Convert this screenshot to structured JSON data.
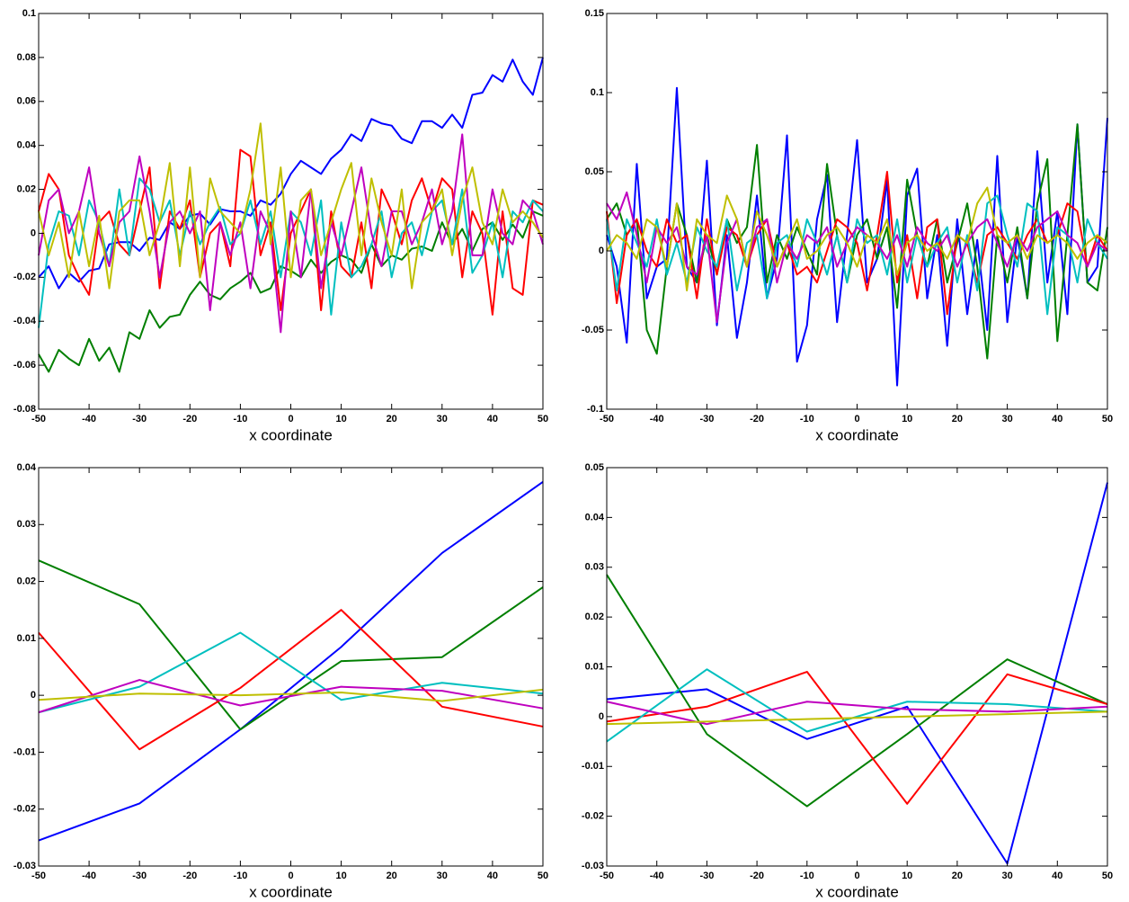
{
  "chart_data": [
    {
      "type": "line",
      "xlabel": "x coordinate",
      "x": [
        -50,
        -48,
        -46,
        -44,
        -42,
        -40,
        -38,
        -36,
        -34,
        -32,
        -30,
        -28,
        -26,
        -24,
        -22,
        -20,
        -18,
        -16,
        -14,
        -12,
        -10,
        -8,
        -6,
        -4,
        -2,
        0,
        2,
        4,
        6,
        8,
        10,
        12,
        14,
        16,
        18,
        20,
        22,
        24,
        26,
        28,
        30,
        32,
        34,
        36,
        38,
        40,
        42,
        44,
        46,
        48,
        50
      ],
      "xlim": [
        -50,
        50
      ],
      "ylim": [
        -0.08,
        0.1
      ],
      "xticks": [
        -50,
        -40,
        -30,
        -20,
        -10,
        0,
        10,
        20,
        30,
        40,
        50
      ],
      "yticks": [
        -0.08,
        -0.06,
        -0.04,
        -0.02,
        0,
        0.02,
        0.04,
        0.06,
        0.08,
        0.1
      ],
      "series": [
        {
          "color": "#0000ff",
          "values": [
            -0.02,
            -0.015,
            -0.025,
            -0.018,
            -0.022,
            -0.017,
            -0.016,
            -0.005,
            -0.004,
            -0.004,
            -0.008,
            -0.002,
            -0.003,
            0.005,
            0.002,
            0.008,
            0.009,
            0.004,
            0.011,
            0.01,
            0.01,
            0.008,
            0.015,
            0.013,
            0.018,
            0.027,
            0.033,
            0.03,
            0.027,
            0.034,
            0.038,
            0.045,
            0.042,
            0.052,
            0.05,
            0.049,
            0.043,
            0.041,
            0.051,
            0.051,
            0.048,
            0.054,
            0.048,
            0.063,
            0.064,
            0.072,
            0.069,
            0.079,
            0.069,
            0.063,
            0.08
          ]
        },
        {
          "color": "#007f00",
          "values": [
            -0.055,
            -0.063,
            -0.053,
            -0.057,
            -0.06,
            -0.048,
            -0.058,
            -0.052,
            -0.063,
            -0.045,
            -0.048,
            -0.035,
            -0.043,
            -0.038,
            -0.037,
            -0.028,
            -0.022,
            -0.028,
            -0.03,
            -0.025,
            -0.022,
            -0.018,
            -0.027,
            -0.025,
            -0.015,
            -0.017,
            -0.02,
            -0.012,
            -0.018,
            -0.013,
            -0.01,
            -0.012,
            -0.018,
            -0.005,
            -0.015,
            -0.01,
            -0.012,
            -0.007,
            -0.006,
            -0.008,
            0.005,
            -0.005,
            0.002,
            -0.008,
            0.002,
            0.005,
            -0.003,
            0.004,
            -0.002,
            0.01,
            0.008
          ]
        },
        {
          "color": "#ff0000",
          "values": [
            0.01,
            0.027,
            0.02,
            -0.01,
            -0.02,
            -0.028,
            0.005,
            0.01,
            -0.005,
            -0.01,
            0.01,
            0.03,
            -0.025,
            0.01,
            0.002,
            0.015,
            -0.02,
            0,
            0.005,
            -0.015,
            0.038,
            0.035,
            -0.01,
            0.005,
            -0.035,
            0,
            0.01,
            0.02,
            -0.035,
            0.01,
            -0.015,
            -0.02,
            0.005,
            -0.025,
            0.02,
            0.01,
            -0.005,
            0.015,
            0.025,
            0.01,
            0.025,
            0.02,
            -0.02,
            0.01,
            0,
            -0.037,
            0.01,
            -0.025,
            -0.028,
            0.015,
            0.013
          ]
        },
        {
          "color": "#00bfbf",
          "values": [
            -0.043,
            -0.005,
            0.01,
            0.008,
            -0.01,
            0.015,
            0.005,
            -0.015,
            0.02,
            -0.01,
            0.025,
            0.02,
            0.005,
            0.015,
            -0.01,
            0.01,
            -0.005,
            0.005,
            0.012,
            -0.005,
            0,
            0.015,
            -0.005,
            0.01,
            -0.02,
            0.01,
            0.005,
            -0.01,
            0.015,
            -0.037,
            0.005,
            -0.02,
            -0.015,
            -0.005,
            0.01,
            -0.02,
            0,
            0.005,
            -0.01,
            0.01,
            0.015,
            -0.005,
            0.02,
            -0.018,
            -0.01,
            0.005,
            -0.02,
            0.01,
            0.005,
            0.015,
            0.01
          ]
        },
        {
          "color": "#bf00bf",
          "values": [
            -0.01,
            0.015,
            0.02,
            0,
            0.01,
            0.03,
            0,
            -0.015,
            0.005,
            0.01,
            0.035,
            0.01,
            -0.02,
            0.005,
            0.01,
            0,
            0.01,
            -0.035,
            0.005,
            -0.01,
            0.005,
            -0.025,
            0.01,
            0,
            -0.045,
            0.01,
            -0.02,
            0.02,
            -0.025,
            0.005,
            -0.01,
            0.01,
            0.03,
            0,
            -0.015,
            0.01,
            0.01,
            -0.005,
            0.005,
            0.02,
            -0.005,
            0.01,
            0.045,
            -0.01,
            -0.01,
            0.02,
            0,
            -0.005,
            0.015,
            0.01,
            -0.005
          ]
        },
        {
          "color": "#bfbf00",
          "values": [
            0.01,
            -0.01,
            0.005,
            -0.02,
            0.01,
            -0.015,
            0.008,
            -0.025,
            0.01,
            0.015,
            0.015,
            -0.01,
            0.005,
            0.032,
            -0.015,
            0.03,
            -0.02,
            0.025,
            0.01,
            0.005,
            0,
            0.02,
            0.05,
            -0.005,
            0.03,
            -0.02,
            0.015,
            0.02,
            -0.01,
            0.005,
            0.02,
            0.032,
            -0.01,
            0.025,
            0.005,
            -0.01,
            0.02,
            -0.025,
            0.005,
            0.01,
            0.02,
            -0.01,
            0.015,
            0.03,
            0.005,
            -0.005,
            0.02,
            0.005,
            0.01,
            0.005,
            -0.002
          ]
        }
      ]
    },
    {
      "type": "line",
      "xlabel": "x coordinate",
      "x": [
        -50,
        -48,
        -46,
        -44,
        -42,
        -40,
        -38,
        -36,
        -34,
        -32,
        -30,
        -28,
        -26,
        -24,
        -22,
        -20,
        -18,
        -16,
        -14,
        -12,
        -10,
        -8,
        -6,
        -4,
        -2,
        0,
        2,
        4,
        6,
        8,
        10,
        12,
        14,
        16,
        18,
        20,
        22,
        24,
        26,
        28,
        30,
        32,
        34,
        36,
        38,
        40,
        42,
        44,
        46,
        48,
        50
      ],
      "xlim": [
        -50,
        50
      ],
      "ylim": [
        -0.1,
        0.15
      ],
      "xticks": [
        -50,
        -40,
        -30,
        -20,
        -10,
        0,
        10,
        20,
        30,
        40,
        50
      ],
      "yticks": [
        -0.1,
        -0.05,
        0,
        0.05,
        0.1,
        0.15
      ],
      "series": [
        {
          "color": "#0000ff",
          "values": [
            0.01,
            -0.01,
            -0.058,
            0.055,
            -0.03,
            -0.01,
            -0.005,
            0.103,
            -0.01,
            -0.02,
            0.057,
            -0.047,
            0.01,
            -0.055,
            -0.02,
            0.035,
            -0.03,
            -0.005,
            0.073,
            -0.07,
            -0.047,
            0.02,
            0.048,
            -0.045,
            0.01,
            0.07,
            -0.02,
            -0.005,
            0.045,
            -0.085,
            0.035,
            0.052,
            -0.03,
            0.01,
            -0.06,
            0.02,
            -0.04,
            0.007,
            -0.05,
            0.06,
            -0.045,
            0.01,
            -0.03,
            0.063,
            -0.02,
            0.025,
            -0.04,
            0.08,
            -0.02,
            -0.01,
            0.084
          ]
        },
        {
          "color": "#007f00",
          "values": [
            0.02,
            0.03,
            0.01,
            0.02,
            -0.05,
            -0.065,
            -0.01,
            0.03,
            0.01,
            -0.02,
            0.01,
            -0.015,
            0.02,
            0.005,
            0.015,
            0.067,
            -0.02,
            0.01,
            -0.005,
            0.015,
            0,
            -0.015,
            0.055,
            0.01,
            -0.02,
            0.01,
            0.02,
            -0.005,
            0.015,
            -0.036,
            0.045,
            0.01,
            -0.01,
            0.02,
            -0.02,
            0.005,
            0.03,
            -0.01,
            -0.068,
            0.01,
            -0.02,
            0.015,
            -0.03,
            0.03,
            0.058,
            -0.057,
            0.01,
            0.08,
            -0.02,
            -0.025,
            0.015
          ]
        },
        {
          "color": "#ff0000",
          "values": [
            0.025,
            -0.033,
            0.01,
            0.02,
            0,
            -0.01,
            0.02,
            0.005,
            0.01,
            -0.03,
            0.02,
            -0.015,
            0.015,
            0.01,
            -0.01,
            0.01,
            0.02,
            -0.01,
            0.005,
            -0.015,
            -0.01,
            -0.02,
            0,
            0.02,
            0.015,
            0.005,
            -0.025,
            0.01,
            0.05,
            -0.02,
            0.01,
            -0.03,
            0.015,
            0.02,
            -0.04,
            0.01,
            0.005,
            -0.02,
            0.01,
            0.015,
            0.005,
            -0.005,
            0.01,
            0.02,
            0.005,
            0.01,
            0.03,
            0.025,
            -0.01,
            0.01,
            0
          ]
        },
        {
          "color": "#00bfbf",
          "values": [
            0.02,
            -0.025,
            0.02,
            0.005,
            -0.01,
            0.02,
            -0.015,
            0.005,
            -0.02,
            0.015,
            0,
            -0.01,
            0.02,
            -0.025,
            0.005,
            0.01,
            -0.03,
            0.005,
            0.01,
            -0.01,
            0.02,
            0.005,
            -0.015,
            0.01,
            -0.02,
            0.02,
            0.005,
            0.01,
            -0.015,
            0.02,
            -0.02,
            0.01,
            -0.01,
            0.005,
            0.015,
            -0.02,
            0.01,
            -0.025,
            0.03,
            0.035,
            0.01,
            -0.01,
            0.03,
            0.025,
            -0.04,
            0.015,
            0.01,
            -0.02,
            0.02,
            0.005,
            -0.005
          ]
        },
        {
          "color": "#bf00bf",
          "values": [
            0.03,
            0.02,
            0.037,
            0.01,
            -0.02,
            0.015,
            0.005,
            0.015,
            -0.01,
            -0.015,
            0.01,
            -0.045,
            0.005,
            0.02,
            -0.01,
            0.015,
            0.02,
            -0.02,
            0.005,
            -0.005,
            0.01,
            0.005,
            0.015,
            -0.01,
            0.005,
            0.015,
            0.01,
            0.005,
            -0.005,
            0.01,
            -0.01,
            0.015,
            0.005,
            0,
            0.01,
            -0.01,
            0.005,
            0.015,
            0.02,
            0.005,
            -0.01,
            0.01,
            0,
            0.015,
            0.02,
            0.025,
            0.01,
            0.005,
            -0.01,
            0.005,
            0
          ]
        },
        {
          "color": "#bfbf00",
          "values": [
            0,
            0.01,
            0.005,
            -0.005,
            0.02,
            0.015,
            -0.01,
            0.03,
            -0.025,
            0.02,
            0.01,
            0.005,
            0.035,
            0.02,
            -0.01,
            0.025,
            0.01,
            -0.01,
            0.005,
            0.02,
            -0.005,
            0,
            0.01,
            0.015,
            0.005,
            -0.01,
            0.01,
            0.005,
            0.02,
            -0.015,
            0.005,
            0.01,
            0,
            0.005,
            -0.005,
            0.01,
            0.005,
            0.03,
            0.04,
            0.01,
            0.005,
            0.01,
            -0.005,
            0.01,
            0.005,
            0.01,
            0.005,
            -0.005,
            0.005,
            0.01,
            0.005
          ]
        }
      ]
    },
    {
      "type": "line",
      "xlabel": "x coordinate",
      "x": [
        -50,
        -30,
        -10,
        10,
        30,
        50
      ],
      "xlim": [
        -50,
        50
      ],
      "ylim": [
        -0.03,
        0.04
      ],
      "xticks": [
        -50,
        -40,
        -30,
        -20,
        -10,
        0,
        10,
        20,
        30,
        40,
        50
      ],
      "yticks": [
        -0.03,
        -0.02,
        -0.01,
        0,
        0.01,
        0.02,
        0.03,
        0.04
      ],
      "series": [
        {
          "color": "#0000ff",
          "values": [
            -0.0255,
            -0.019,
            -0.006,
            0.0085,
            0.025,
            0.0375
          ]
        },
        {
          "color": "#007f00",
          "values": [
            0.0237,
            0.016,
            -0.006,
            0.006,
            0.0067,
            0.019
          ]
        },
        {
          "color": "#ff0000",
          "values": [
            0.011,
            -0.0095,
            0.0013,
            0.015,
            -0.002,
            -0.0055
          ]
        },
        {
          "color": "#00bfbf",
          "values": [
            -0.003,
            0.0015,
            0.011,
            -0.0008,
            0.0022,
            0.0003
          ]
        },
        {
          "color": "#bf00bf",
          "values": [
            -0.003,
            0.0027,
            -0.0018,
            0.0015,
            0.0008,
            -0.0023
          ]
        },
        {
          "color": "#bfbf00",
          "values": [
            -0.0008,
            0.0003,
            0,
            0.0005,
            -0.001,
            0.001
          ]
        }
      ]
    },
    {
      "type": "line",
      "xlabel": "x coordinate",
      "x": [
        -50,
        -30,
        -10,
        10,
        30,
        50
      ],
      "xlim": [
        -50,
        50
      ],
      "ylim": [
        -0.03,
        0.05
      ],
      "xticks": [
        -50,
        -40,
        -30,
        -20,
        -10,
        0,
        10,
        20,
        30,
        40,
        50
      ],
      "yticks": [
        -0.03,
        -0.02,
        -0.01,
        0,
        0.01,
        0.02,
        0.03,
        0.04,
        0.05
      ],
      "series": [
        {
          "color": "#0000ff",
          "values": [
            0.0035,
            0.0055,
            -0.0045,
            0.002,
            -0.0295,
            0.047
          ]
        },
        {
          "color": "#007f00",
          "values": [
            0.0285,
            -0.0035,
            -0.018,
            -0.0035,
            0.0115,
            0.0025
          ]
        },
        {
          "color": "#ff0000",
          "values": [
            -0.001,
            0.002,
            0.009,
            -0.0175,
            0.0085,
            0.0025
          ]
        },
        {
          "color": "#00bfbf",
          "values": [
            -0.005,
            0.0095,
            -0.003,
            0.003,
            0.0025,
            0.001
          ]
        },
        {
          "color": "#bf00bf",
          "values": [
            0.003,
            -0.0015,
            0.003,
            0.0015,
            0.001,
            0.002
          ]
        },
        {
          "color": "#bfbf00",
          "values": [
            -0.0015,
            -0.001,
            -0.0005,
            0,
            0.0005,
            0.001
          ]
        }
      ]
    }
  ]
}
